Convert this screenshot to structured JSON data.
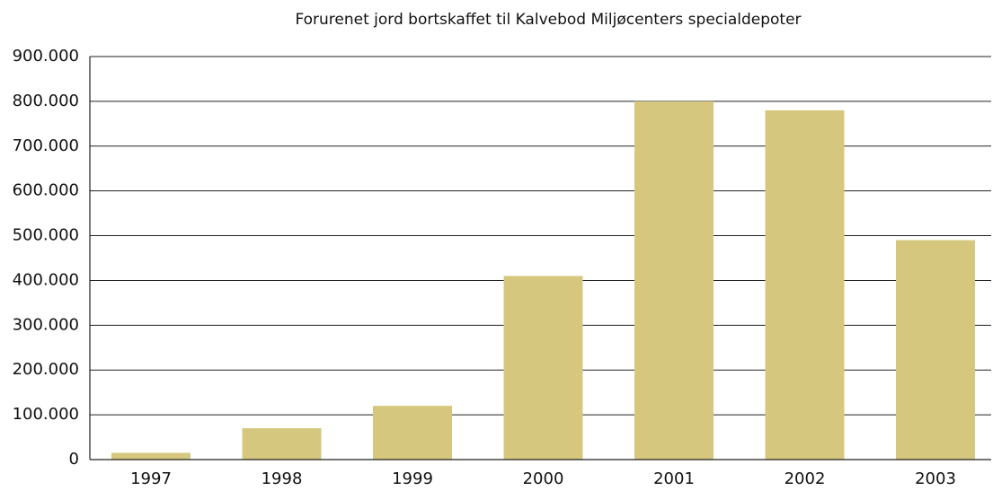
{
  "chart_data": {
    "type": "bar",
    "title": "Forurenet jord bortskaffet til Kalvebod Miljøcenters specialdepoter",
    "categories": [
      "1997",
      "1998",
      "1999",
      "2000",
      "2001",
      "2002",
      "2003"
    ],
    "values": [
      15000,
      70000,
      120000,
      410000,
      800000,
      780000,
      490000
    ],
    "color": "#d5c87e",
    "ylim": [
      0,
      900000
    ],
    "yticks": [
      0,
      {
        "value": 100000,
        "label": "100.000"
      },
      {
        "value": 200000,
        "label": "200.000"
      },
      {
        "value": 300000,
        "label": "300.000"
      },
      {
        "value": 400000,
        "label": "400.000"
      },
      {
        "value": 500000,
        "label": "500.000"
      },
      {
        "value": 600000,
        "label": "600.000"
      },
      {
        "value": 700000,
        "label": "700.000"
      },
      {
        "value": 800000,
        "label": "800.000"
      },
      {
        "value": 900000,
        "label": "900.000"
      }
    ],
    "grid": true
  }
}
